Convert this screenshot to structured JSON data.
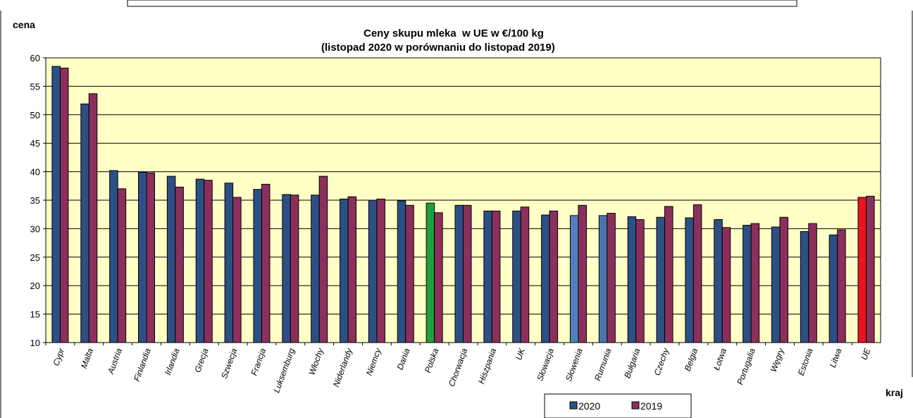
{
  "chart_data": {
    "type": "bar",
    "title": [
      "Ceny skupu mleka  w UE w €/100 kg",
      "(listopad 2020 w porównaniu do listopad 2019)"
    ],
    "ylabel": "cena",
    "xlabel": "kraj",
    "ylim": [
      10,
      60
    ],
    "yticks": [
      10,
      15,
      20,
      25,
      30,
      35,
      40,
      45,
      50,
      55,
      60
    ],
    "grid": true,
    "legend": "bottom",
    "categories": [
      "Cypr",
      "Malta",
      "Austria",
      "Finlandia",
      "Irlandia",
      "Grecja",
      "Szwecja",
      "Francja",
      "Luksemburg",
      "Włochy",
      "Niderlandy",
      "Niemcy",
      "Dania",
      "Polska",
      "Chorwacja",
      "Hiszpania",
      "UK",
      "Słowacja",
      "Słowenia",
      "Rumunia",
      "Bułgaria",
      "Czechy",
      "Belgia",
      "Łotwa",
      "Portugalia",
      "Węgry",
      "Estonia",
      "Litwa",
      "UE"
    ],
    "series": [
      {
        "name": "2020",
        "color": "#2e4f86",
        "values": [
          58.5,
          51.9,
          40.2,
          39.9,
          39.2,
          38.7,
          38.0,
          36.9,
          36.0,
          35.9,
          35.2,
          35.0,
          34.9,
          34.5,
          34.1,
          33.1,
          33.1,
          32.4,
          32.3,
          32.3,
          32.1,
          32.0,
          31.9,
          31.6,
          30.6,
          30.3,
          29.5,
          28.9,
          35.5
        ]
      },
      {
        "name": "2019",
        "color": "#8c2f5c",
        "values": [
          58.2,
          53.7,
          37.0,
          39.8,
          37.3,
          38.5,
          35.5,
          37.8,
          35.9,
          39.2,
          35.6,
          35.2,
          34.1,
          32.8,
          34.1,
          33.1,
          33.8,
          33.1,
          34.1,
          32.7,
          31.6,
          33.9,
          34.2,
          30.2,
          30.9,
          32.0,
          30.9,
          29.8,
          35.7
        ]
      }
    ],
    "highlight_colors": {
      "Polska": "#1fa03c",
      "Słowenia": "#4f81bd",
      "Rumunia": "#4a74b0",
      "UE": "#e8141e"
    },
    "plot_bg": "#ffffc6"
  }
}
